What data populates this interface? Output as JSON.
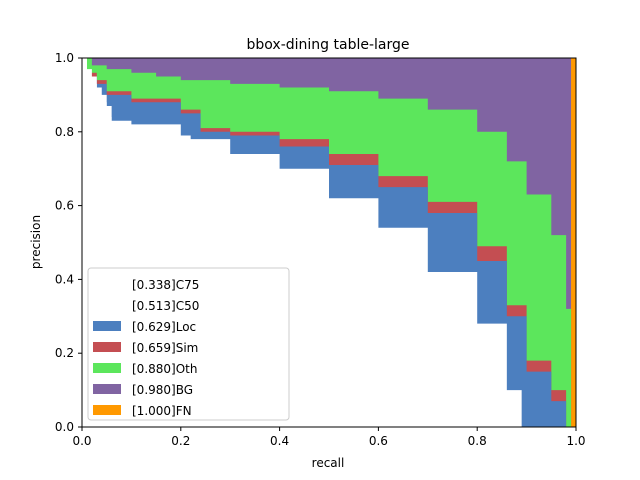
{
  "chart_data": {
    "type": "area",
    "title": "bbox-dining table-large",
    "xlabel": "recall",
    "ylabel": "precision",
    "xlim": [
      0,
      1
    ],
    "ylim": [
      0,
      1
    ],
    "xticks": [
      "0.0",
      "0.2",
      "0.4",
      "0.6",
      "0.8",
      "1.0"
    ],
    "yticks": [
      "0.0",
      "0.2",
      "0.4",
      "0.6",
      "0.8",
      "1.0"
    ],
    "grid": false,
    "legend_position": "lower-left",
    "legend": [
      {
        "label": "[0.338]C75",
        "color": "#ffffff"
      },
      {
        "label": "[0.513]C50",
        "color": "#ffffff"
      },
      {
        "label": "[0.629]Loc",
        "color": "#4c7fbf"
      },
      {
        "label": "[0.659]Sim",
        "color": "#c44e52"
      },
      {
        "label": "[0.880]Oth",
        "color": "#5ce65c"
      },
      {
        "label": "[0.980]BG",
        "color": "#8064a2"
      },
      {
        "label": "[1.000]FN",
        "color": "#ff9900"
      }
    ],
    "series": [
      {
        "name": "[0.338]C75",
        "color": "#ffffff",
        "x": [
          0,
          0.01,
          0.02,
          0.03,
          0.04,
          0.05,
          0.06,
          0.07,
          0.08,
          0.1,
          0.18,
          0.2,
          0.25,
          0.28,
          0.3,
          0.35,
          0.4,
          0.45,
          0.5,
          0.55,
          0.6,
          0.62,
          0.63
        ],
        "y": [
          1.0,
          0.97,
          0.95,
          0.92,
          0.88,
          0.84,
          0.8,
          0.75,
          0.7,
          0.68,
          0.68,
          0.62,
          0.61,
          0.59,
          0.59,
          0.55,
          0.49,
          0.43,
          0.33,
          0.22,
          0.1,
          0.03,
          0.0
        ]
      },
      {
        "name": "[0.513]C50",
        "color": "#ffffff",
        "x": [
          0,
          0.01,
          0.03,
          0.05,
          0.06,
          0.1,
          0.2,
          0.22,
          0.3,
          0.4,
          0.5,
          0.6,
          0.7,
          0.8,
          0.86,
          0.89
        ],
        "y": [
          1.0,
          0.93,
          0.9,
          0.87,
          0.83,
          0.82,
          0.79,
          0.78,
          0.74,
          0.7,
          0.62,
          0.54,
          0.42,
          0.28,
          0.1,
          0.0
        ]
      },
      {
        "name": "[0.629]Loc",
        "color": "#4c7fbf",
        "x": [
          0,
          0.01,
          0.03,
          0.05,
          0.1,
          0.2,
          0.24,
          0.3,
          0.4,
          0.5,
          0.6,
          0.7,
          0.8,
          0.86,
          0.9,
          0.95,
          0.98
        ],
        "y": [
          1.0,
          0.95,
          0.93,
          0.9,
          0.88,
          0.85,
          0.8,
          0.79,
          0.76,
          0.71,
          0.65,
          0.58,
          0.45,
          0.3,
          0.15,
          0.07,
          0.0
        ]
      },
      {
        "name": "[0.659]Sim",
        "color": "#c44e52",
        "x": [
          0,
          0.01,
          0.03,
          0.05,
          0.1,
          0.2,
          0.24,
          0.3,
          0.4,
          0.5,
          0.6,
          0.7,
          0.8,
          0.86,
          0.9,
          0.95,
          0.98
        ],
        "y": [
          1.0,
          0.96,
          0.94,
          0.91,
          0.89,
          0.86,
          0.81,
          0.8,
          0.78,
          0.74,
          0.68,
          0.61,
          0.49,
          0.33,
          0.18,
          0.1,
          0.0
        ]
      },
      {
        "name": "[0.880]Oth",
        "color": "#5ce65c",
        "x": [
          0,
          0.02,
          0.05,
          0.1,
          0.15,
          0.2,
          0.3,
          0.4,
          0.5,
          0.6,
          0.7,
          0.8,
          0.86,
          0.9,
          0.95,
          0.98,
          0.99
        ],
        "y": [
          1.0,
          0.98,
          0.97,
          0.96,
          0.95,
          0.94,
          0.93,
          0.92,
          0.91,
          0.89,
          0.86,
          0.8,
          0.72,
          0.63,
          0.52,
          0.32,
          0.0
        ]
      },
      {
        "name": "[0.980]BG",
        "color": "#8064a2",
        "x": [
          0,
          0.98,
          0.99
        ],
        "y": [
          1.0,
          1.0,
          0.0
        ]
      },
      {
        "name": "[1.000]FN",
        "color": "#ff9900",
        "x": [
          0,
          0.99,
          1.0
        ],
        "y": [
          1.0,
          1.0,
          1.0
        ]
      }
    ]
  }
}
